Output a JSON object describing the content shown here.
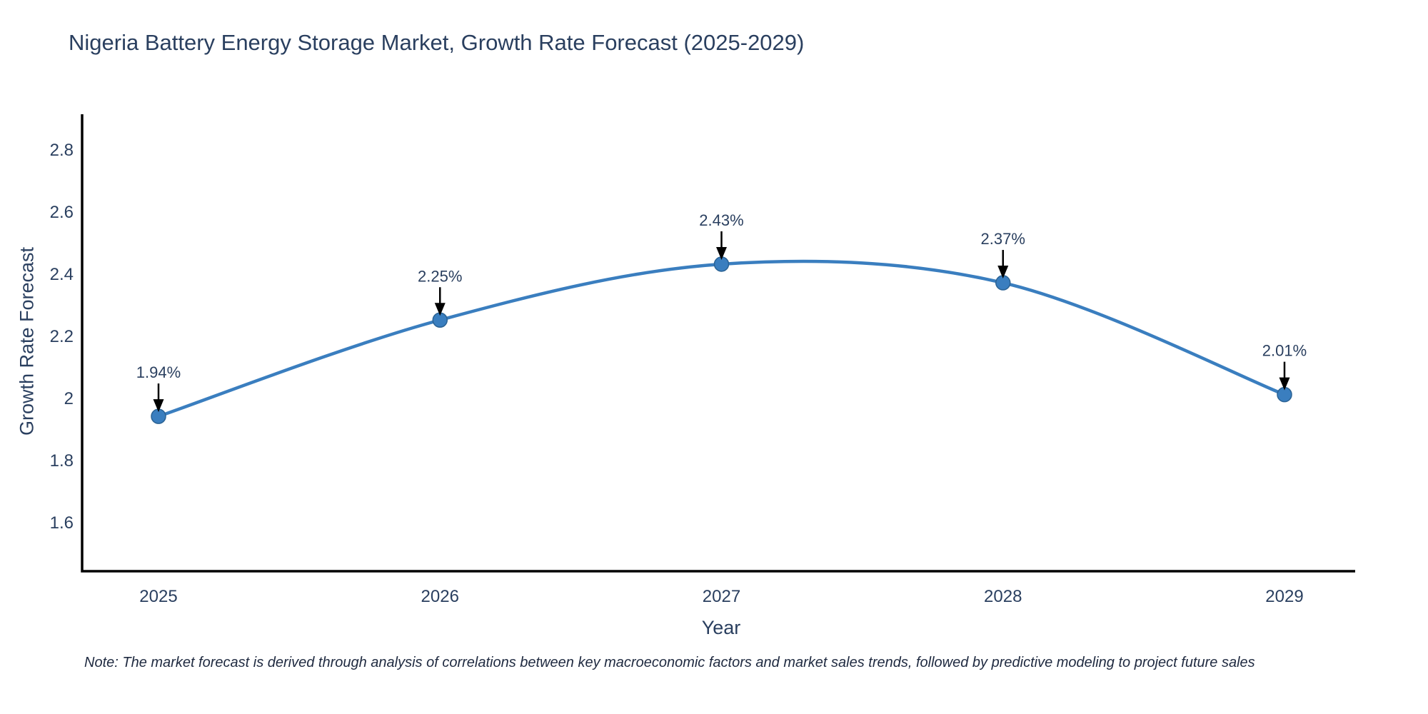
{
  "title": "Nigeria Battery Energy Storage Market, Growth Rate Forecast (2025-2029)",
  "note": "Note: The market forecast is derived through analysis of correlations between key macroeconomic factors and market sales trends, followed by predictive modeling to project future sales",
  "chart_data": {
    "type": "line",
    "title": "Nigeria Battery Energy Storage Market, Growth Rate Forecast (2025-2029)",
    "xlabel": "Year",
    "ylabel": "Growth Rate Forecast",
    "categories": [
      "2025",
      "2026",
      "2027",
      "2028",
      "2029"
    ],
    "values": [
      1.94,
      2.25,
      2.43,
      2.37,
      2.01
    ],
    "point_labels": [
      "1.94%",
      "2.25%",
      "2.43%",
      "2.37%",
      "2.01%"
    ],
    "yticks": [
      1.6,
      1.8,
      2,
      2.2,
      2.4,
      2.6,
      2.8
    ],
    "ylim": [
      1.44,
      2.91
    ],
    "grid": false,
    "legend": "none",
    "line_shape": "spline",
    "line_color": "#3a7ebf",
    "marker_color": "#3a7ebf",
    "marker_edge_color": "#2a6294",
    "axis_color": "#000000",
    "annotation_arrow_color": "#000000",
    "text_color": "#2a3f5f"
  }
}
